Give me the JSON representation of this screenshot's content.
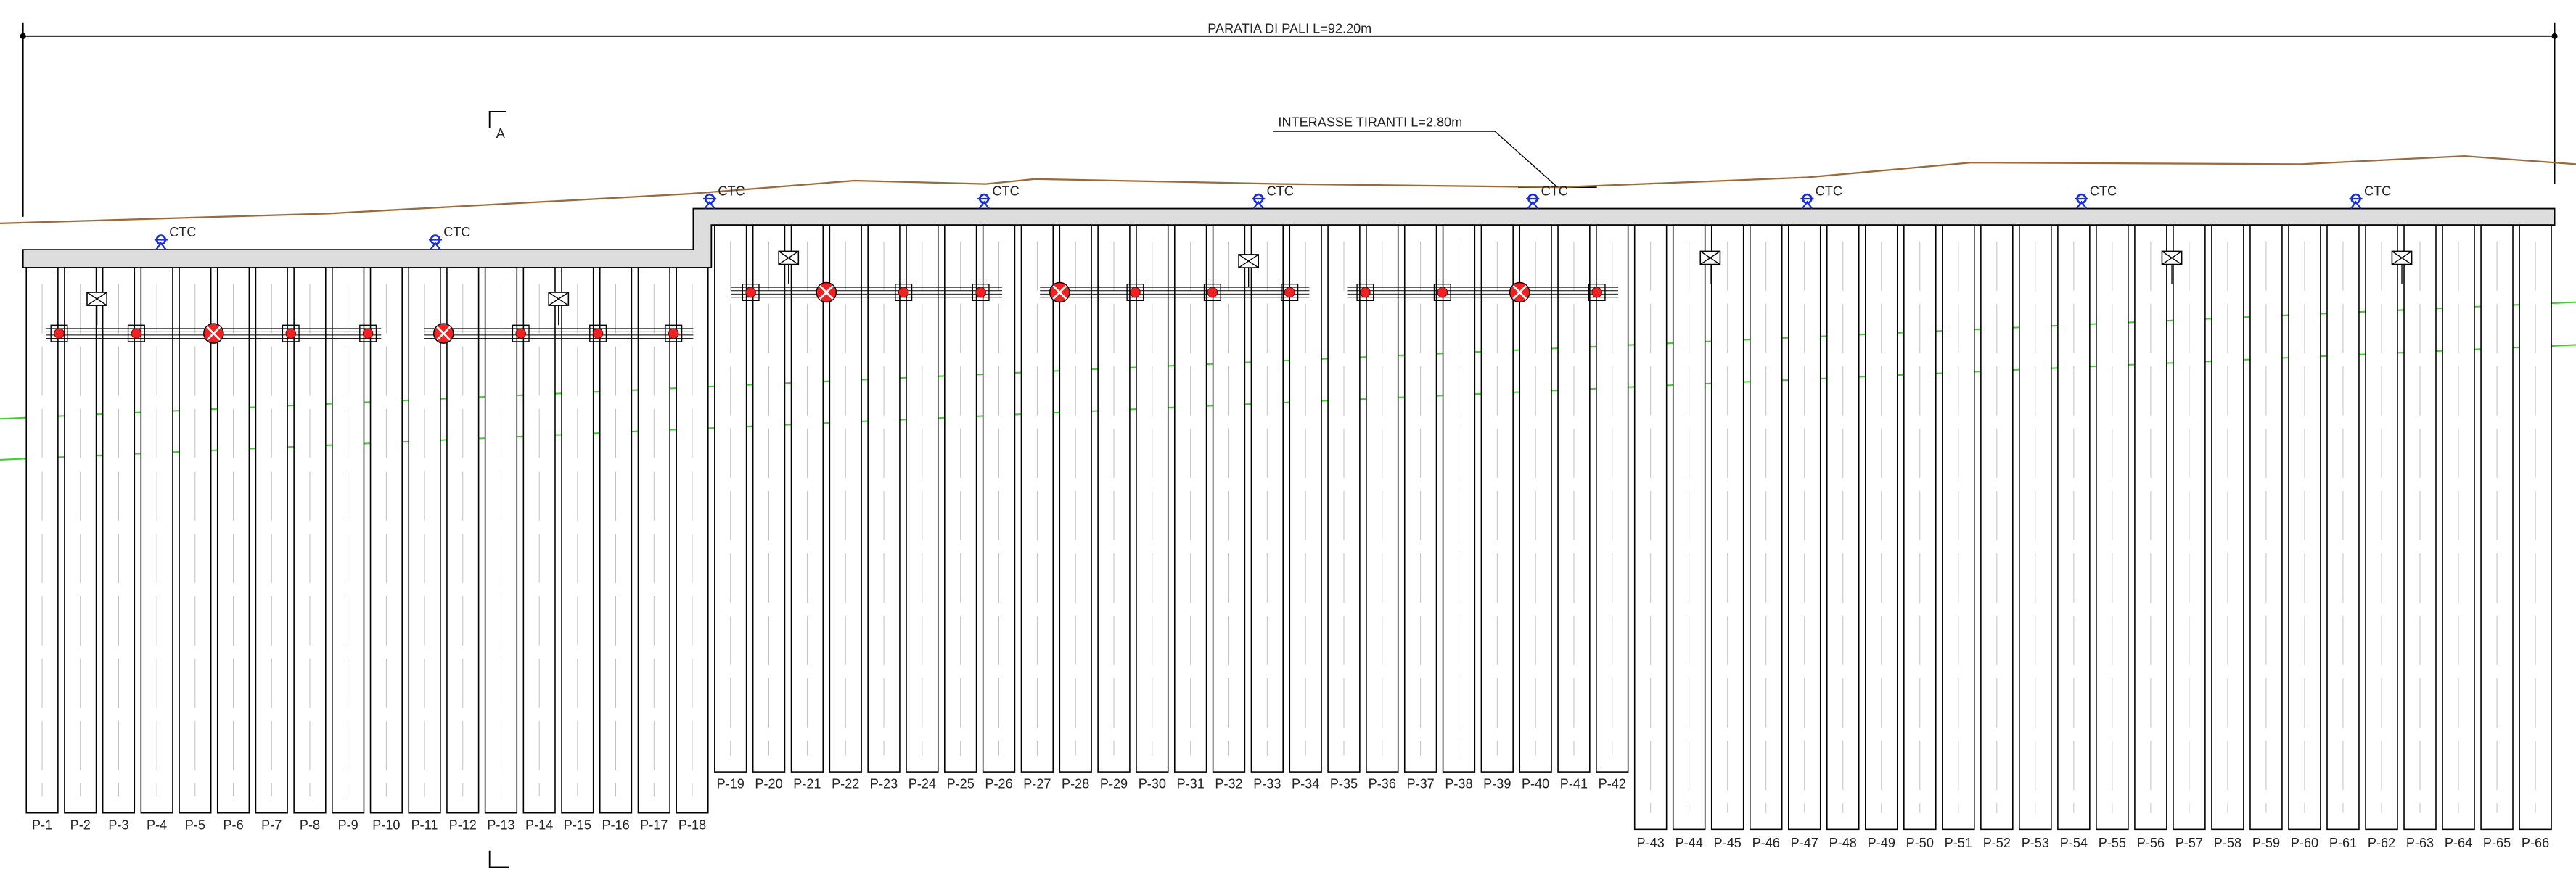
{
  "dimension": {
    "label": "PARATIA DI PALI L=92.20m"
  },
  "callout": {
    "label": "INTERASSE TIRANTI L=2.80m"
  },
  "section_mark": "A",
  "ctc_labels": [
    "CTC",
    "CTC",
    "CTC",
    "CTC",
    "CTC",
    "CTC",
    "CTC",
    "CTC",
    "CTC"
  ],
  "segments": [
    {
      "piles": [
        "P-1",
        "P-2",
        "P-3",
        "P-4",
        "P-5",
        "P-6",
        "P-7",
        "P-8",
        "P-9",
        "P-10",
        "P-11",
        "P-12",
        "P-13",
        "P-14",
        "P-15",
        "P-16",
        "P-17",
        "P-18"
      ]
    },
    {
      "piles": [
        "P-19",
        "P-20",
        "P-21",
        "P-22",
        "P-23",
        "P-24",
        "P-25",
        "P-26",
        "P-27",
        "P-28",
        "P-29",
        "P-30",
        "P-31",
        "P-32",
        "P-33",
        "P-34",
        "P-35",
        "P-36",
        "P-37",
        "P-38",
        "P-39",
        "P-40",
        "P-41",
        "P-42"
      ]
    },
    {
      "piles": [
        "P-43",
        "P-44",
        "P-45",
        "P-46",
        "P-47",
        "P-48",
        "P-49",
        "P-50",
        "P-51",
        "P-52",
        "P-53",
        "P-54",
        "P-55",
        "P-56",
        "P-57",
        "P-58",
        "P-59",
        "P-60",
        "P-61",
        "P-62",
        "P-63",
        "P-64",
        "P-65",
        "P-66"
      ]
    }
  ]
}
